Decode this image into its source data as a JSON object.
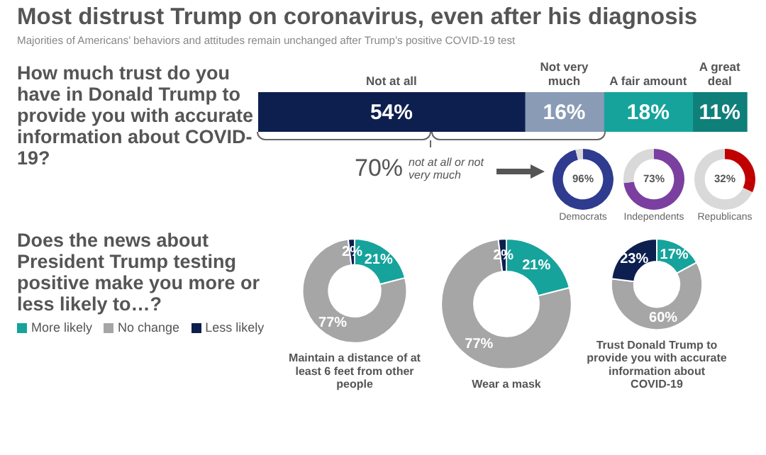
{
  "chart_data": [
    {
      "type": "bar",
      "orientation": "horizontal",
      "stacked": true,
      "title": "Most distrust Trump on coronavirus, even after his diagnosis",
      "subtitle": "Majorities of Americans’ behaviors and attitudes remain unchanged after Trump’s positive COVID-19 test",
      "categories": [
        null
      ],
      "tick_labels": false,
      "series": [
        {
          "name": "Not at all",
          "color": "#0d1f4f",
          "values": [
            54
          ],
          "value_labels": [
            "54%"
          ]
        },
        {
          "name": "Not very much",
          "color": "#8a9bb5",
          "values": [
            16
          ],
          "value_labels": [
            "16%"
          ]
        },
        {
          "name": "A fair amount",
          "color": "#16a39c",
          "values": [
            18
          ],
          "value_labels": [
            "18%"
          ]
        },
        {
          "name": "A great deal",
          "color": "#0f7f7a",
          "values": [
            11
          ],
          "value_labels": [
            "11%"
          ]
        }
      ],
      "annotations": [
        "How much trust do you have in Donald Trump to provide you with accurate information about COVID-19?",
        "70% not at all or not very much"
      ]
    },
    {
      "type": "donut",
      "title": "Democrats",
      "categories": [
        null,
        null
      ],
      "values": [
        96,
        4
      ],
      "colors": [
        "#2e3b8f",
        "#d9d9d9"
      ],
      "value_labels": [
        "96%",
        null
      ]
    },
    {
      "type": "donut",
      "title": "Independents",
      "categories": [
        null,
        null
      ],
      "values": [
        73,
        27
      ],
      "colors": [
        "#7b3fa0",
        "#d9d9d9"
      ],
      "value_labels": [
        "73%",
        null
      ]
    },
    {
      "type": "donut",
      "title": "Republicans",
      "categories": [
        null,
        null
      ],
      "values": [
        32,
        68
      ],
      "colors": [
        "#c00000",
        "#d9d9d9"
      ],
      "value_labels": [
        "32%",
        null
      ]
    },
    {
      "type": "donut",
      "title": "Maintain a distance of at least 6 feet from other people",
      "categories": [
        "More likely",
        "No change",
        "Less likely"
      ],
      "values": [
        21,
        77,
        2
      ],
      "colors": [
        "#16a39c",
        "#a6a6a6",
        "#0d1f4f"
      ],
      "value_labels": [
        "21%",
        "77%",
        "2%"
      ],
      "legend": "left",
      "legend_title": "Does the news about President Trump testing positive make you more or less likely to…?"
    },
    {
      "type": "donut",
      "title": "Wear a mask",
      "categories": [
        null,
        null,
        null
      ],
      "values": [
        21,
        77,
        2
      ],
      "colors": [
        "#16a39c",
        "#a6a6a6",
        "#0d1f4f"
      ],
      "value_labels": [
        "21%",
        "77%",
        "2%"
      ]
    },
    {
      "type": "donut",
      "title": "Trust Donald Trump to provide you with accurate information about COVID-19",
      "categories": [
        null,
        null,
        null
      ],
      "values": [
        17,
        60,
        23
      ],
      "colors": [
        "#16a39c",
        "#a6a6a6",
        "#0d1f4f"
      ],
      "value_labels": [
        "17%",
        "60%",
        "23%"
      ]
    }
  ]
}
